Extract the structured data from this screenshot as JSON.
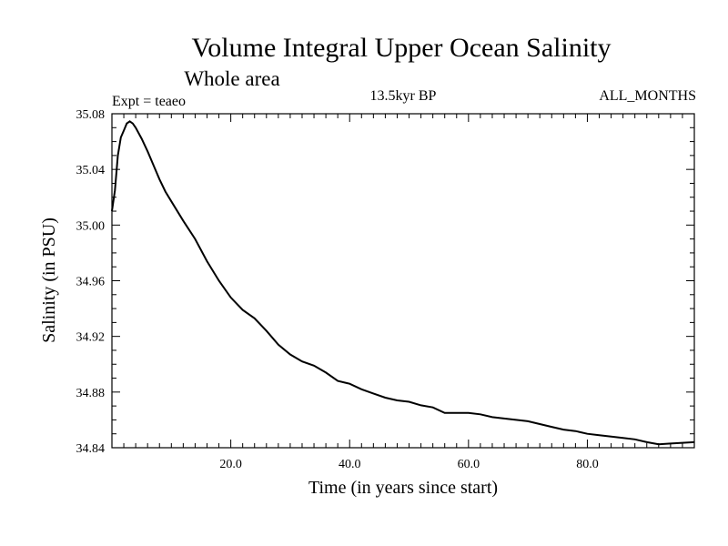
{
  "header": {
    "title": "Volume Integral Upper Ocean Salinity",
    "region": "Whole area",
    "experiment": "Expt = teaeo",
    "period": "13.5kyr BP",
    "months": "ALL_MONTHS"
  },
  "chart_data": {
    "type": "line",
    "title": "Volume Integral Upper Ocean Salinity",
    "subtitle": "Whole area",
    "xlabel": "Time (in years since start)",
    "ylabel": "Salinity (in PSU)",
    "xlim": [
      0,
      98
    ],
    "ylim": [
      34.84,
      35.08
    ],
    "x_ticks": [
      20,
      40,
      60,
      80
    ],
    "x_tick_labels": [
      "20.0",
      "40.0",
      "60.0",
      "80.0"
    ],
    "y_ticks": [
      34.84,
      34.88,
      34.92,
      34.96,
      35.0,
      35.04,
      35.08
    ],
    "y_tick_labels": [
      "34.84",
      "34.88",
      "34.92",
      "34.96",
      "35.00",
      "35.04",
      "35.08"
    ],
    "grid": false,
    "series": [
      {
        "name": "Salinity",
        "x": [
          0.0,
          0.5,
          1.0,
          1.5,
          2.0,
          2.5,
          3.0,
          3.5,
          4.0,
          5.0,
          6.0,
          7.0,
          8.0,
          9.0,
          10.0,
          12.0,
          14.0,
          16.0,
          18.0,
          20.0,
          22.0,
          24.0,
          26.0,
          28.0,
          30.0,
          32.0,
          34.0,
          36.0,
          38.0,
          40.0,
          42.0,
          44.0,
          46.0,
          48.0,
          50.0,
          52.0,
          54.0,
          56.0,
          58.0,
          60.0,
          62.0,
          64.0,
          66.0,
          68.0,
          70.0,
          72.0,
          74.0,
          76.0,
          78.0,
          80.0,
          82.0,
          84.0,
          86.0,
          88.0,
          90.0,
          92.0,
          94.0,
          96.0,
          98.0
        ],
        "y": [
          35.01,
          35.025,
          35.05,
          35.063,
          35.068,
          35.073,
          35.0745,
          35.073,
          35.07,
          35.062,
          35.053,
          35.043,
          35.033,
          35.024,
          35.017,
          35.003,
          34.99,
          34.974,
          34.96,
          34.948,
          34.939,
          34.933,
          34.924,
          34.914,
          34.907,
          34.902,
          34.899,
          34.894,
          34.888,
          34.886,
          34.882,
          34.879,
          34.876,
          34.874,
          34.873,
          34.8705,
          34.869,
          34.865,
          34.865,
          34.865,
          34.864,
          34.862,
          34.861,
          34.86,
          34.859,
          34.857,
          34.855,
          34.853,
          34.852,
          34.85,
          34.849,
          34.848,
          34.847,
          34.846,
          34.844,
          34.8425,
          34.843,
          34.8435,
          34.844
        ]
      }
    ]
  }
}
